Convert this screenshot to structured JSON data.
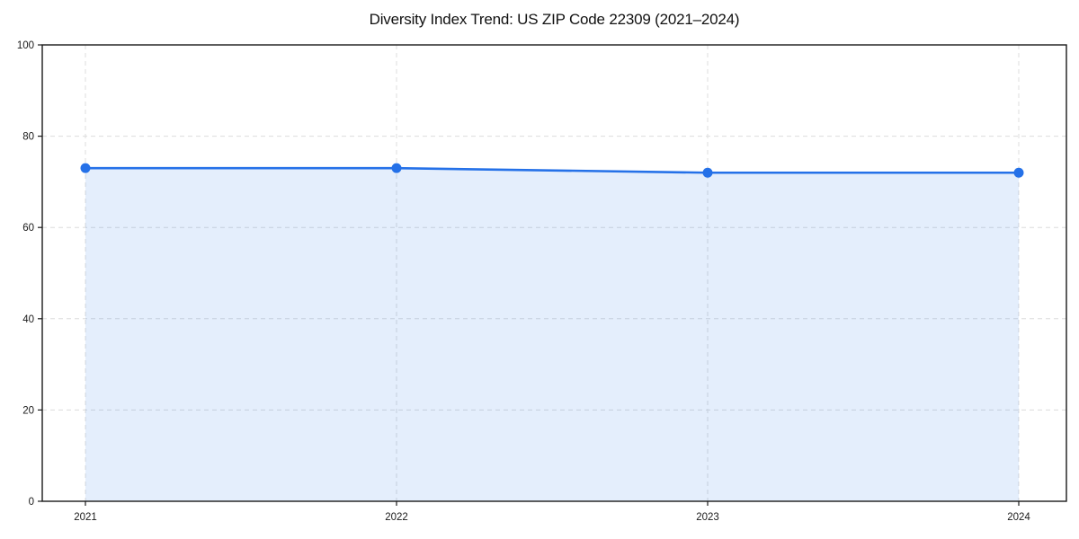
{
  "chart_data": {
    "type": "area",
    "title": "Diversity Index Trend: US ZIP Code 22309 (2021–2024)",
    "categories": [
      "2021",
      "2022",
      "2023",
      "2024"
    ],
    "series": [
      {
        "name": "Diversity Index",
        "values": [
          73,
          73,
          72,
          72
        ]
      }
    ],
    "xlabel": "",
    "ylabel": "",
    "ylim": [
      0,
      100
    ],
    "yticks": [
      0,
      20,
      40,
      60,
      80,
      100
    ],
    "grid": true,
    "grid_style": "dashed",
    "legend_position": "none",
    "colors": {
      "line": "#2571e8",
      "marker": "#2571e8",
      "fill": "#2571e8",
      "fill_opacity": 0.12,
      "gridline": "#dcdcdc",
      "spine": "#1a1a1a",
      "tick_text": "#1a1a1a",
      "background": "#ffffff"
    }
  }
}
